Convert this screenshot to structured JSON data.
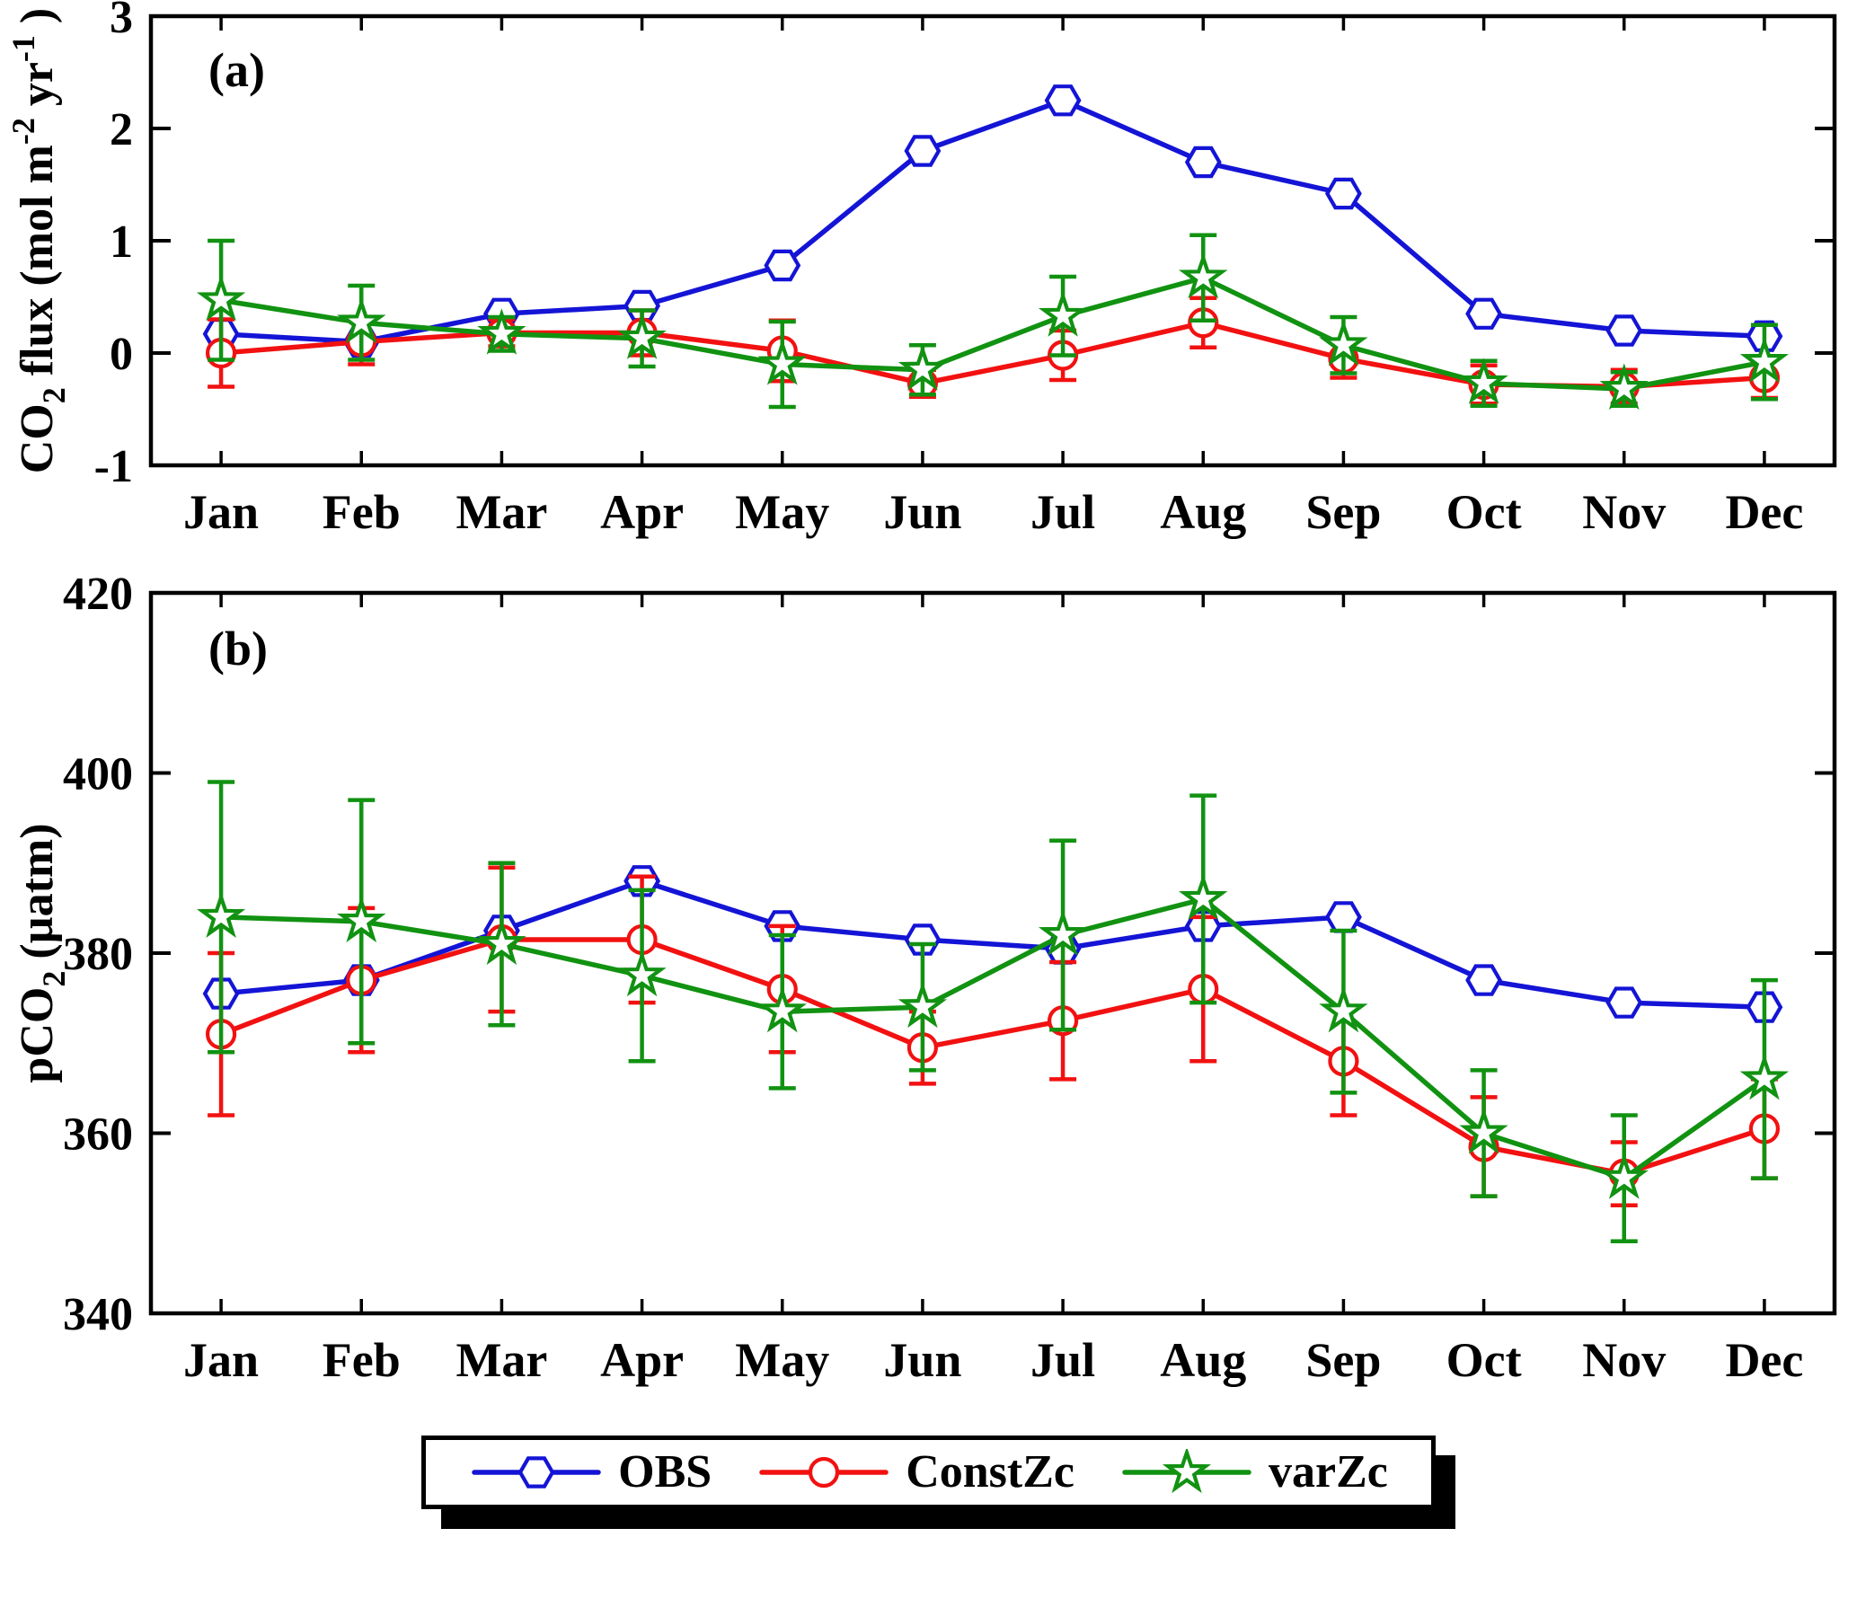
{
  "figure": {
    "panel_a_tag": "(a)",
    "panel_b_tag": "(b)"
  },
  "legend": {
    "position": "bottom",
    "items": [
      {
        "label": "OBS"
      },
      {
        "label": "ConstZc"
      },
      {
        "label": "varZc"
      }
    ]
  },
  "chart_data": [
    {
      "type": "line",
      "panel": "a",
      "tag": "(a)",
      "title": "",
      "xlabel": "",
      "ylabel_parts": [
        {
          "t": "CO"
        },
        {
          "t": "2",
          "pos": "sub"
        },
        {
          "t": " flux (mol m"
        },
        {
          "t": "-2",
          "pos": "sup"
        },
        {
          "t": " yr"
        },
        {
          "t": "-1",
          "pos": "sup"
        },
        {
          "t": " )"
        }
      ],
      "categories": [
        "Jan",
        "Feb",
        "Mar",
        "Apr",
        "May",
        "Jun",
        "Jul",
        "Aug",
        "Sep",
        "Oct",
        "Nov",
        "Dec"
      ],
      "ylim": [
        -1,
        3
      ],
      "yticks": [
        -1,
        0,
        1,
        2,
        3
      ],
      "grid": false,
      "series": [
        {
          "name": "OBS",
          "color": "#1414d6",
          "marker": "hexagon",
          "values": [
            0.17,
            0.1,
            0.35,
            0.42,
            0.78,
            1.8,
            2.25,
            1.7,
            1.42,
            0.35,
            0.2,
            0.15
          ],
          "errors": null
        },
        {
          "name": "ConstZc",
          "color": "#f21111",
          "marker": "circle",
          "values": [
            0.0,
            0.1,
            0.18,
            0.18,
            0.02,
            -0.27,
            -0.02,
            0.27,
            -0.05,
            -0.28,
            -0.3,
            -0.22
          ],
          "errors": [
            0.3,
            0.2,
            0.12,
            0.2,
            0.27,
            0.12,
            0.22,
            0.22,
            0.17,
            0.17,
            0.15,
            0.18
          ]
        },
        {
          "name": "varZc",
          "color": "#119211",
          "marker": "star",
          "values": [
            0.47,
            0.27,
            0.17,
            0.13,
            -0.1,
            -0.15,
            0.33,
            0.67,
            0.07,
            -0.27,
            -0.32,
            -0.08
          ],
          "errors": [
            0.53,
            0.33,
            0.15,
            0.25,
            0.38,
            0.22,
            0.35,
            0.38,
            0.25,
            0.2,
            0.15,
            0.33
          ]
        }
      ]
    },
    {
      "type": "line",
      "panel": "b",
      "tag": "(b)",
      "title": "",
      "xlabel": "",
      "ylabel_parts": [
        {
          "t": "pCO"
        },
        {
          "t": "2",
          "pos": "sub"
        },
        {
          "t": " (µatm)"
        }
      ],
      "categories": [
        "Jan",
        "Feb",
        "Mar",
        "Apr",
        "May",
        "Jun",
        "Jul",
        "Aug",
        "Sep",
        "Oct",
        "Nov",
        "Dec"
      ],
      "ylim": [
        340,
        420
      ],
      "yticks": [
        340,
        360,
        380,
        400,
        420
      ],
      "grid": false,
      "series": [
        {
          "name": "OBS",
          "color": "#1414d6",
          "marker": "hexagon",
          "values": [
            375.5,
            377.0,
            382.5,
            388.0,
            383.0,
            381.5,
            380.5,
            383.0,
            384.0,
            377.0,
            374.5,
            374.0
          ],
          "errors": null
        },
        {
          "name": "ConstZc",
          "color": "#f21111",
          "marker": "circle",
          "values": [
            371.0,
            377.0,
            381.5,
            381.5,
            376.0,
            369.5,
            372.5,
            376.0,
            368.0,
            358.5,
            355.5,
            360.5
          ],
          "errors": [
            9.0,
            8.0,
            8.0,
            7.0,
            7.0,
            4.0,
            6.5,
            8.0,
            6.0,
            5.5,
            3.5,
            5.5
          ]
        },
        {
          "name": "varZc",
          "color": "#119211",
          "marker": "star",
          "values": [
            384.0,
            383.5,
            381.0,
            377.5,
            373.5,
            374.0,
            382.0,
            386.0,
            373.5,
            360.0,
            355.0,
            366.0
          ],
          "errors": [
            15.0,
            13.5,
            9.0,
            9.5,
            8.5,
            7.0,
            10.5,
            11.5,
            9.0,
            7.0,
            7.0,
            11.0
          ]
        }
      ]
    }
  ]
}
